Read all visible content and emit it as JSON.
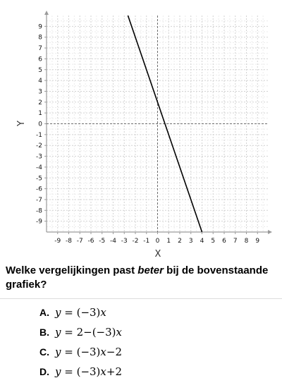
{
  "chart_data": {
    "type": "line",
    "xlabel": "X",
    "ylabel": "Y",
    "xlim": [
      -10,
      10
    ],
    "ylim": [
      -10,
      10
    ],
    "x_ticks": [
      "-9",
      "-8",
      "-7",
      "-6",
      "-5",
      "-4",
      "-3",
      "-2",
      "-1",
      "0",
      "1",
      "2",
      "3",
      "4",
      "5",
      "6",
      "7",
      "8",
      "9"
    ],
    "y_ticks": [
      "9",
      "8",
      "7",
      "6",
      "5",
      "4",
      "3",
      "2",
      "1",
      "0",
      "-1",
      "-2",
      "-3",
      "-4",
      "-5",
      "-6",
      "-7",
      "-8",
      "-9"
    ],
    "grid": true,
    "series": [
      {
        "slope": -3,
        "intercept": 2,
        "x": [
          -2.67,
          4
        ],
        "y": [
          10,
          -10
        ],
        "color": "#000000"
      }
    ]
  },
  "question": {
    "before": "Welke vergelijkingen past ",
    "emphasis": "beter",
    "after": " bij de bovenstaande grafiek?"
  },
  "options": [
    {
      "letter": "A.",
      "parts": [
        [
          "v",
          "y"
        ],
        [
          "t",
          " = (−3)"
        ],
        [
          "v",
          "x"
        ]
      ]
    },
    {
      "letter": "B.",
      "parts": [
        [
          "v",
          "y"
        ],
        [
          "t",
          " = 2−(−3)"
        ],
        [
          "v",
          "x"
        ]
      ]
    },
    {
      "letter": "C.",
      "parts": [
        [
          "v",
          "y"
        ],
        [
          "t",
          " = (−3)"
        ],
        [
          "v",
          "x"
        ],
        [
          "t",
          "−2"
        ]
      ]
    },
    {
      "letter": "D.",
      "parts": [
        [
          "v",
          "y"
        ],
        [
          "t",
          " = (−3)"
        ],
        [
          "v",
          "x"
        ],
        [
          "t",
          "+2"
        ]
      ]
    }
  ]
}
